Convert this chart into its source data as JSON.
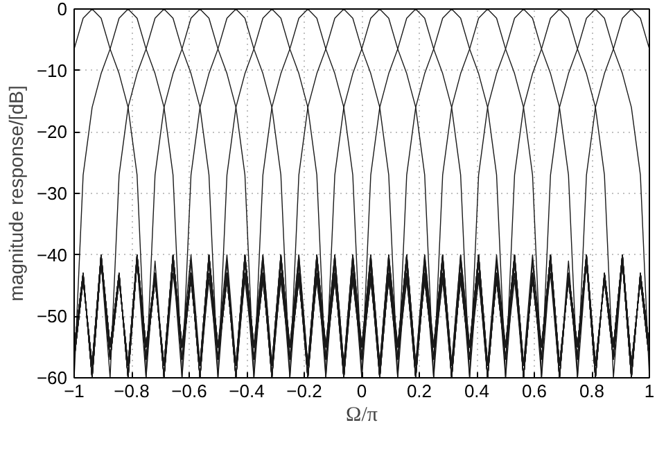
{
  "chart_data": {
    "type": "line",
    "xlabel": "Ω/π",
    "ylabel": "magnitude response/[dB]",
    "xlim": [
      -1,
      1
    ],
    "ylim": [
      -60,
      0
    ],
    "xticks": [
      -1,
      -0.8,
      -0.6,
      -0.4,
      -0.2,
      0,
      0.2,
      0.4,
      0.6,
      0.8,
      1
    ],
    "yticks": [
      -60,
      -50,
      -40,
      -30,
      -20,
      -10,
      0
    ],
    "grid": true,
    "line_style": "solid",
    "marker": "none",
    "x": [
      -1,
      -0.96875,
      -0.9375,
      -0.90625,
      -0.875,
      -0.84375,
      -0.8125,
      -0.78125,
      -0.75,
      -0.71875,
      -0.6875,
      -0.65625,
      -0.625,
      -0.59375,
      -0.5625,
      -0.53125,
      -0.5,
      -0.46875,
      -0.4375,
      -0.40625,
      -0.375,
      -0.34375,
      -0.3125,
      -0.28125,
      -0.25,
      -0.21875,
      -0.1875,
      -0.15625,
      -0.125,
      -0.09375,
      -0.0625,
      -0.03125,
      0,
      0.03125,
      0.0625,
      0.09375,
      0.125,
      0.15625,
      0.1875,
      0.21875,
      0.25,
      0.28125,
      0.3125,
      0.34375,
      0.375,
      0.40625,
      0.4375,
      0.46875,
      0.5,
      0.53125,
      0.5625,
      0.59375,
      0.625,
      0.65625,
      0.6875,
      0.71875,
      0.75,
      0.78125,
      0.8125,
      0.84375,
      0.875,
      0.90625,
      0.9375,
      0.96875,
      1
    ],
    "series": [
      {
        "color": "#1a1a1a",
        "values": [
          -6.5,
          -1.5,
          0,
          -1.5,
          -6.5,
          -10.5,
          -16,
          -27,
          -60,
          -41,
          -60,
          -43,
          -55,
          -40,
          -58,
          -44,
          -57,
          -41,
          -60,
          -43,
          -55,
          -40,
          -58,
          -44,
          -57,
          -41,
          -60,
          -43,
          -55,
          -40,
          -58,
          -44,
          -57,
          -41,
          -60,
          -43,
          -55,
          -40,
          -58,
          -44,
          -57,
          -41,
          -60,
          -43,
          -55,
          -40,
          -58,
          -44,
          -57,
          -41,
          -60,
          -43,
          -55,
          -40,
          -58,
          -44,
          -57,
          -41,
          -60,
          -43,
          -55,
          -40,
          -58,
          -44,
          -57
        ]
      },
      {
        "color": "#1a1a1a",
        "values": [
          -60,
          -27,
          -16,
          -10.5,
          -6.5,
          -1.5,
          0,
          -1.5,
          -6.5,
          -10.5,
          -16,
          -27,
          -60,
          -41,
          -60,
          -43,
          -55,
          -40,
          -58,
          -44,
          -57,
          -41,
          -60,
          -43,
          -55,
          -40,
          -58,
          -44,
          -57,
          -41,
          -60,
          -43,
          -55,
          -40,
          -58,
          -44,
          -57,
          -41,
          -60,
          -43,
          -55,
          -40,
          -58,
          -44,
          -57,
          -41,
          -60,
          -43,
          -55,
          -40,
          -58,
          -44,
          -57,
          -41,
          -60,
          -43,
          -55,
          -40,
          -58,
          -44,
          -57,
          -41,
          -60,
          -43,
          -55
        ]
      },
      {
        "color": "#1a1a1a",
        "values": [
          -55,
          -43,
          -60,
          -41,
          -60,
          -27,
          -16,
          -10.5,
          -6.5,
          -1.5,
          0,
          -1.5,
          -6.5,
          -10.5,
          -16,
          -27,
          -60,
          -41,
          -60,
          -43,
          -55,
          -40,
          -58,
          -44,
          -57,
          -41,
          -60,
          -43,
          -55,
          -40,
          -58,
          -44,
          -57,
          -41,
          -60,
          -43,
          -55,
          -40,
          -58,
          -44,
          -57,
          -41,
          -60,
          -43,
          -55,
          -40,
          -58,
          -44,
          -57,
          -41,
          -60,
          -43,
          -55,
          -40,
          -58,
          -44,
          -57,
          -41,
          -60,
          -43,
          -55,
          -40,
          -58,
          -44,
          -57
        ]
      },
      {
        "color": "#1a1a1a",
        "values": [
          -57,
          -44,
          -58,
          -40,
          -55,
          -43,
          -60,
          -41,
          -60,
          -27,
          -16,
          -10.5,
          -6.5,
          -1.5,
          0,
          -1.5,
          -6.5,
          -10.5,
          -16,
          -27,
          -60,
          -41,
          -60,
          -43,
          -55,
          -40,
          -58,
          -44,
          -57,
          -41,
          -60,
          -43,
          -55,
          -40,
          -58,
          -44,
          -57,
          -41,
          -60,
          -43,
          -55,
          -40,
          -58,
          -44,
          -57,
          -41,
          -60,
          -43,
          -55,
          -40,
          -58,
          -44,
          -57,
          -41,
          -60,
          -43,
          -55,
          -40,
          -58,
          -44,
          -57,
          -41,
          -60,
          -43,
          -55
        ]
      },
      {
        "color": "#1a1a1a",
        "values": [
          -55,
          -43,
          -60,
          -41,
          -57,
          -44,
          -58,
          -40,
          -55,
          -43,
          -60,
          -41,
          -60,
          -27,
          -16,
          -10.5,
          -6.5,
          -1.5,
          0,
          -1.5,
          -6.5,
          -10.5,
          -16,
          -27,
          -60,
          -41,
          -60,
          -43,
          -55,
          -40,
          -58,
          -44,
          -57,
          -41,
          -60,
          -43,
          -55,
          -40,
          -58,
          -44,
          -57,
          -41,
          -60,
          -43,
          -55,
          -40,
          -58,
          -44,
          -57,
          -41,
          -60,
          -43,
          -55,
          -40,
          -58,
          -44,
          -57,
          -41,
          -60,
          -43,
          -55,
          -40,
          -58,
          -44,
          -57
        ]
      },
      {
        "color": "#1a1a1a",
        "values": [
          -57,
          -44,
          -58,
          -40,
          -55,
          -43,
          -60,
          -41,
          -57,
          -44,
          -58,
          -40,
          -55,
          -43,
          -60,
          -41,
          -60,
          -27,
          -16,
          -10.5,
          -6.5,
          -1.5,
          0,
          -1.5,
          -6.5,
          -10.5,
          -16,
          -27,
          -60,
          -41,
          -60,
          -43,
          -55,
          -40,
          -58,
          -44,
          -57,
          -41,
          -60,
          -43,
          -55,
          -40,
          -58,
          -44,
          -57,
          -41,
          -60,
          -43,
          -55,
          -40,
          -58,
          -44,
          -57,
          -41,
          -60,
          -43,
          -55,
          -40,
          -58,
          -44,
          -57,
          -41,
          -60,
          -43,
          -55
        ]
      },
      {
        "color": "#1a1a1a",
        "values": [
          -55,
          -43,
          -60,
          -41,
          -57,
          -44,
          -58,
          -40,
          -55,
          -43,
          -60,
          -41,
          -57,
          -44,
          -58,
          -40,
          -55,
          -43,
          -60,
          -41,
          -60,
          -27,
          -16,
          -10.5,
          -6.5,
          -1.5,
          0,
          -1.5,
          -6.5,
          -10.5,
          -16,
          -27,
          -60,
          -41,
          -60,
          -43,
          -55,
          -40,
          -58,
          -44,
          -57,
          -41,
          -60,
          -43,
          -55,
          -40,
          -58,
          -44,
          -57,
          -41,
          -60,
          -43,
          -55,
          -40,
          -58,
          -44,
          -57,
          -41,
          -60,
          -43,
          -55,
          -40,
          -58,
          -44,
          -57
        ]
      },
      {
        "color": "#1a1a1a",
        "values": [
          -57,
          -44,
          -58,
          -40,
          -55,
          -43,
          -60,
          -41,
          -57,
          -44,
          -58,
          -40,
          -55,
          -43,
          -60,
          -41,
          -57,
          -44,
          -58,
          -40,
          -55,
          -43,
          -60,
          -41,
          -60,
          -27,
          -16,
          -10.5,
          -6.5,
          -1.5,
          0,
          -1.5,
          -6.5,
          -10.5,
          -16,
          -27,
          -60,
          -41,
          -60,
          -43,
          -55,
          -40,
          -58,
          -44,
          -57,
          -41,
          -60,
          -43,
          -55,
          -40,
          -58,
          -44,
          -57,
          -41,
          -60,
          -43,
          -55,
          -40,
          -58,
          -44,
          -57,
          -41,
          -60,
          -43,
          -55
        ]
      },
      {
        "color": "#1a1a1a",
        "values": [
          -55,
          -43,
          -60,
          -41,
          -57,
          -44,
          -58,
          -40,
          -55,
          -43,
          -60,
          -41,
          -57,
          -44,
          -58,
          -40,
          -55,
          -43,
          -60,
          -41,
          -57,
          -44,
          -58,
          -40,
          -55,
          -43,
          -60,
          -41,
          -60,
          -27,
          -16,
          -10.5,
          -6.5,
          -1.5,
          0,
          -1.5,
          -6.5,
          -10.5,
          -16,
          -27,
          -60,
          -41,
          -60,
          -43,
          -55,
          -40,
          -58,
          -44,
          -57,
          -41,
          -60,
          -43,
          -55,
          -40,
          -58,
          -44,
          -57,
          -41,
          -60,
          -43,
          -55,
          -40,
          -58,
          -44,
          -57
        ]
      },
      {
        "color": "#1a1a1a",
        "values": [
          -57,
          -44,
          -58,
          -40,
          -55,
          -43,
          -60,
          -41,
          -57,
          -44,
          -58,
          -40,
          -55,
          -43,
          -60,
          -41,
          -57,
          -44,
          -58,
          -40,
          -55,
          -43,
          -60,
          -41,
          -57,
          -44,
          -58,
          -40,
          -55,
          -43,
          -60,
          -41,
          -60,
          -27,
          -16,
          -10.5,
          -6.5,
          -1.5,
          0,
          -1.5,
          -6.5,
          -10.5,
          -16,
          -27,
          -60,
          -41,
          -60,
          -43,
          -55,
          -40,
          -58,
          -44,
          -57,
          -41,
          -60,
          -43,
          -55,
          -40,
          -58,
          -44,
          -57,
          -41,
          -60,
          -43,
          -55
        ]
      },
      {
        "color": "#1a1a1a",
        "values": [
          -55,
          -43,
          -60,
          -41,
          -57,
          -44,
          -58,
          -40,
          -55,
          -43,
          -60,
          -41,
          -57,
          -44,
          -58,
          -40,
          -55,
          -43,
          -60,
          -41,
          -57,
          -44,
          -58,
          -40,
          -55,
          -43,
          -60,
          -41,
          -57,
          -44,
          -58,
          -40,
          -55,
          -43,
          -60,
          -41,
          -60,
          -27,
          -16,
          -10.5,
          -6.5,
          -1.5,
          0,
          -1.5,
          -6.5,
          -10.5,
          -16,
          -27,
          -60,
          -41,
          -60,
          -43,
          -55,
          -40,
          -58,
          -44,
          -57,
          -41,
          -60,
          -43,
          -55,
          -40,
          -58,
          -44,
          -57
        ]
      },
      {
        "color": "#1a1a1a",
        "values": [
          -57,
          -44,
          -58,
          -40,
          -55,
          -43,
          -60,
          -41,
          -57,
          -44,
          -58,
          -40,
          -55,
          -43,
          -60,
          -41,
          -57,
          -44,
          -58,
          -40,
          -55,
          -43,
          -60,
          -41,
          -57,
          -44,
          -58,
          -40,
          -55,
          -43,
          -60,
          -41,
          -57,
          -44,
          -58,
          -40,
          -55,
          -43,
          -60,
          -41,
          -60,
          -27,
          -16,
          -10.5,
          -6.5,
          -1.5,
          0,
          -1.5,
          -6.5,
          -10.5,
          -16,
          -27,
          -60,
          -41,
          -60,
          -43,
          -55,
          -40,
          -58,
          -44,
          -57,
          -41,
          -60,
          -43,
          -55
        ]
      },
      {
        "color": "#1a1a1a",
        "values": [
          -55,
          -43,
          -60,
          -41,
          -57,
          -44,
          -58,
          -40,
          -55,
          -43,
          -60,
          -41,
          -57,
          -44,
          -58,
          -40,
          -55,
          -43,
          -60,
          -41,
          -57,
          -44,
          -58,
          -40,
          -55,
          -43,
          -60,
          -41,
          -57,
          -44,
          -58,
          -40,
          -55,
          -43,
          -60,
          -41,
          -57,
          -44,
          -58,
          -40,
          -55,
          -43,
          -60,
          -41,
          -60,
          -27,
          -16,
          -10.5,
          -6.5,
          -1.5,
          0,
          -1.5,
          -6.5,
          -10.5,
          -16,
          -27,
          -60,
          -41,
          -60,
          -43,
          -55,
          -40,
          -58,
          -44,
          -57
        ]
      },
      {
        "color": "#1a1a1a",
        "values": [
          -57,
          -44,
          -58,
          -40,
          -55,
          -43,
          -60,
          -41,
          -57,
          -44,
          -58,
          -40,
          -55,
          -43,
          -60,
          -41,
          -57,
          -44,
          -58,
          -40,
          -55,
          -43,
          -60,
          -41,
          -57,
          -44,
          -58,
          -40,
          -55,
          -43,
          -60,
          -41,
          -57,
          -44,
          -58,
          -40,
          -55,
          -43,
          -60,
          -41,
          -57,
          -44,
          -58,
          -40,
          -55,
          -43,
          -60,
          -41,
          -60,
          -27,
          -16,
          -10.5,
          -6.5,
          -1.5,
          0,
          -1.5,
          -6.5,
          -10.5,
          -16,
          -27,
          -60,
          -41,
          -60,
          -43,
          -55
        ]
      },
      {
        "color": "#1a1a1a",
        "values": [
          -55,
          -43,
          -60,
          -41,
          -57,
          -44,
          -58,
          -40,
          -55,
          -43,
          -60,
          -41,
          -57,
          -44,
          -58,
          -40,
          -55,
          -43,
          -60,
          -41,
          -57,
          -44,
          -58,
          -40,
          -55,
          -43,
          -60,
          -41,
          -57,
          -44,
          -58,
          -40,
          -55,
          -43,
          -60,
          -41,
          -57,
          -44,
          -58,
          -40,
          -55,
          -43,
          -60,
          -41,
          -57,
          -44,
          -58,
          -40,
          -55,
          -43,
          -60,
          -41,
          -60,
          -27,
          -16,
          -10.5,
          -6.5,
          -1.5,
          0,
          -1.5,
          -6.5,
          -10.5,
          -16,
          -27,
          -60
        ]
      },
      {
        "color": "#1a1a1a",
        "values": [
          -57,
          -44,
          -58,
          -40,
          -55,
          -43,
          -60,
          -41,
          -57,
          -44,
          -58,
          -40,
          -55,
          -43,
          -60,
          -41,
          -57,
          -44,
          -58,
          -40,
          -55,
          -43,
          -60,
          -41,
          -57,
          -44,
          -58,
          -40,
          -55,
          -43,
          -60,
          -41,
          -57,
          -44,
          -58,
          -40,
          -55,
          -43,
          -60,
          -41,
          -57,
          -44,
          -58,
          -40,
          -55,
          -43,
          -60,
          -41,
          -57,
          -44,
          -58,
          -40,
          -55,
          -43,
          -60,
          -41,
          -60,
          -27,
          -16,
          -10.5,
          -6.5,
          -1.5,
          0,
          -1.5,
          -6.5
        ]
      }
    ]
  }
}
